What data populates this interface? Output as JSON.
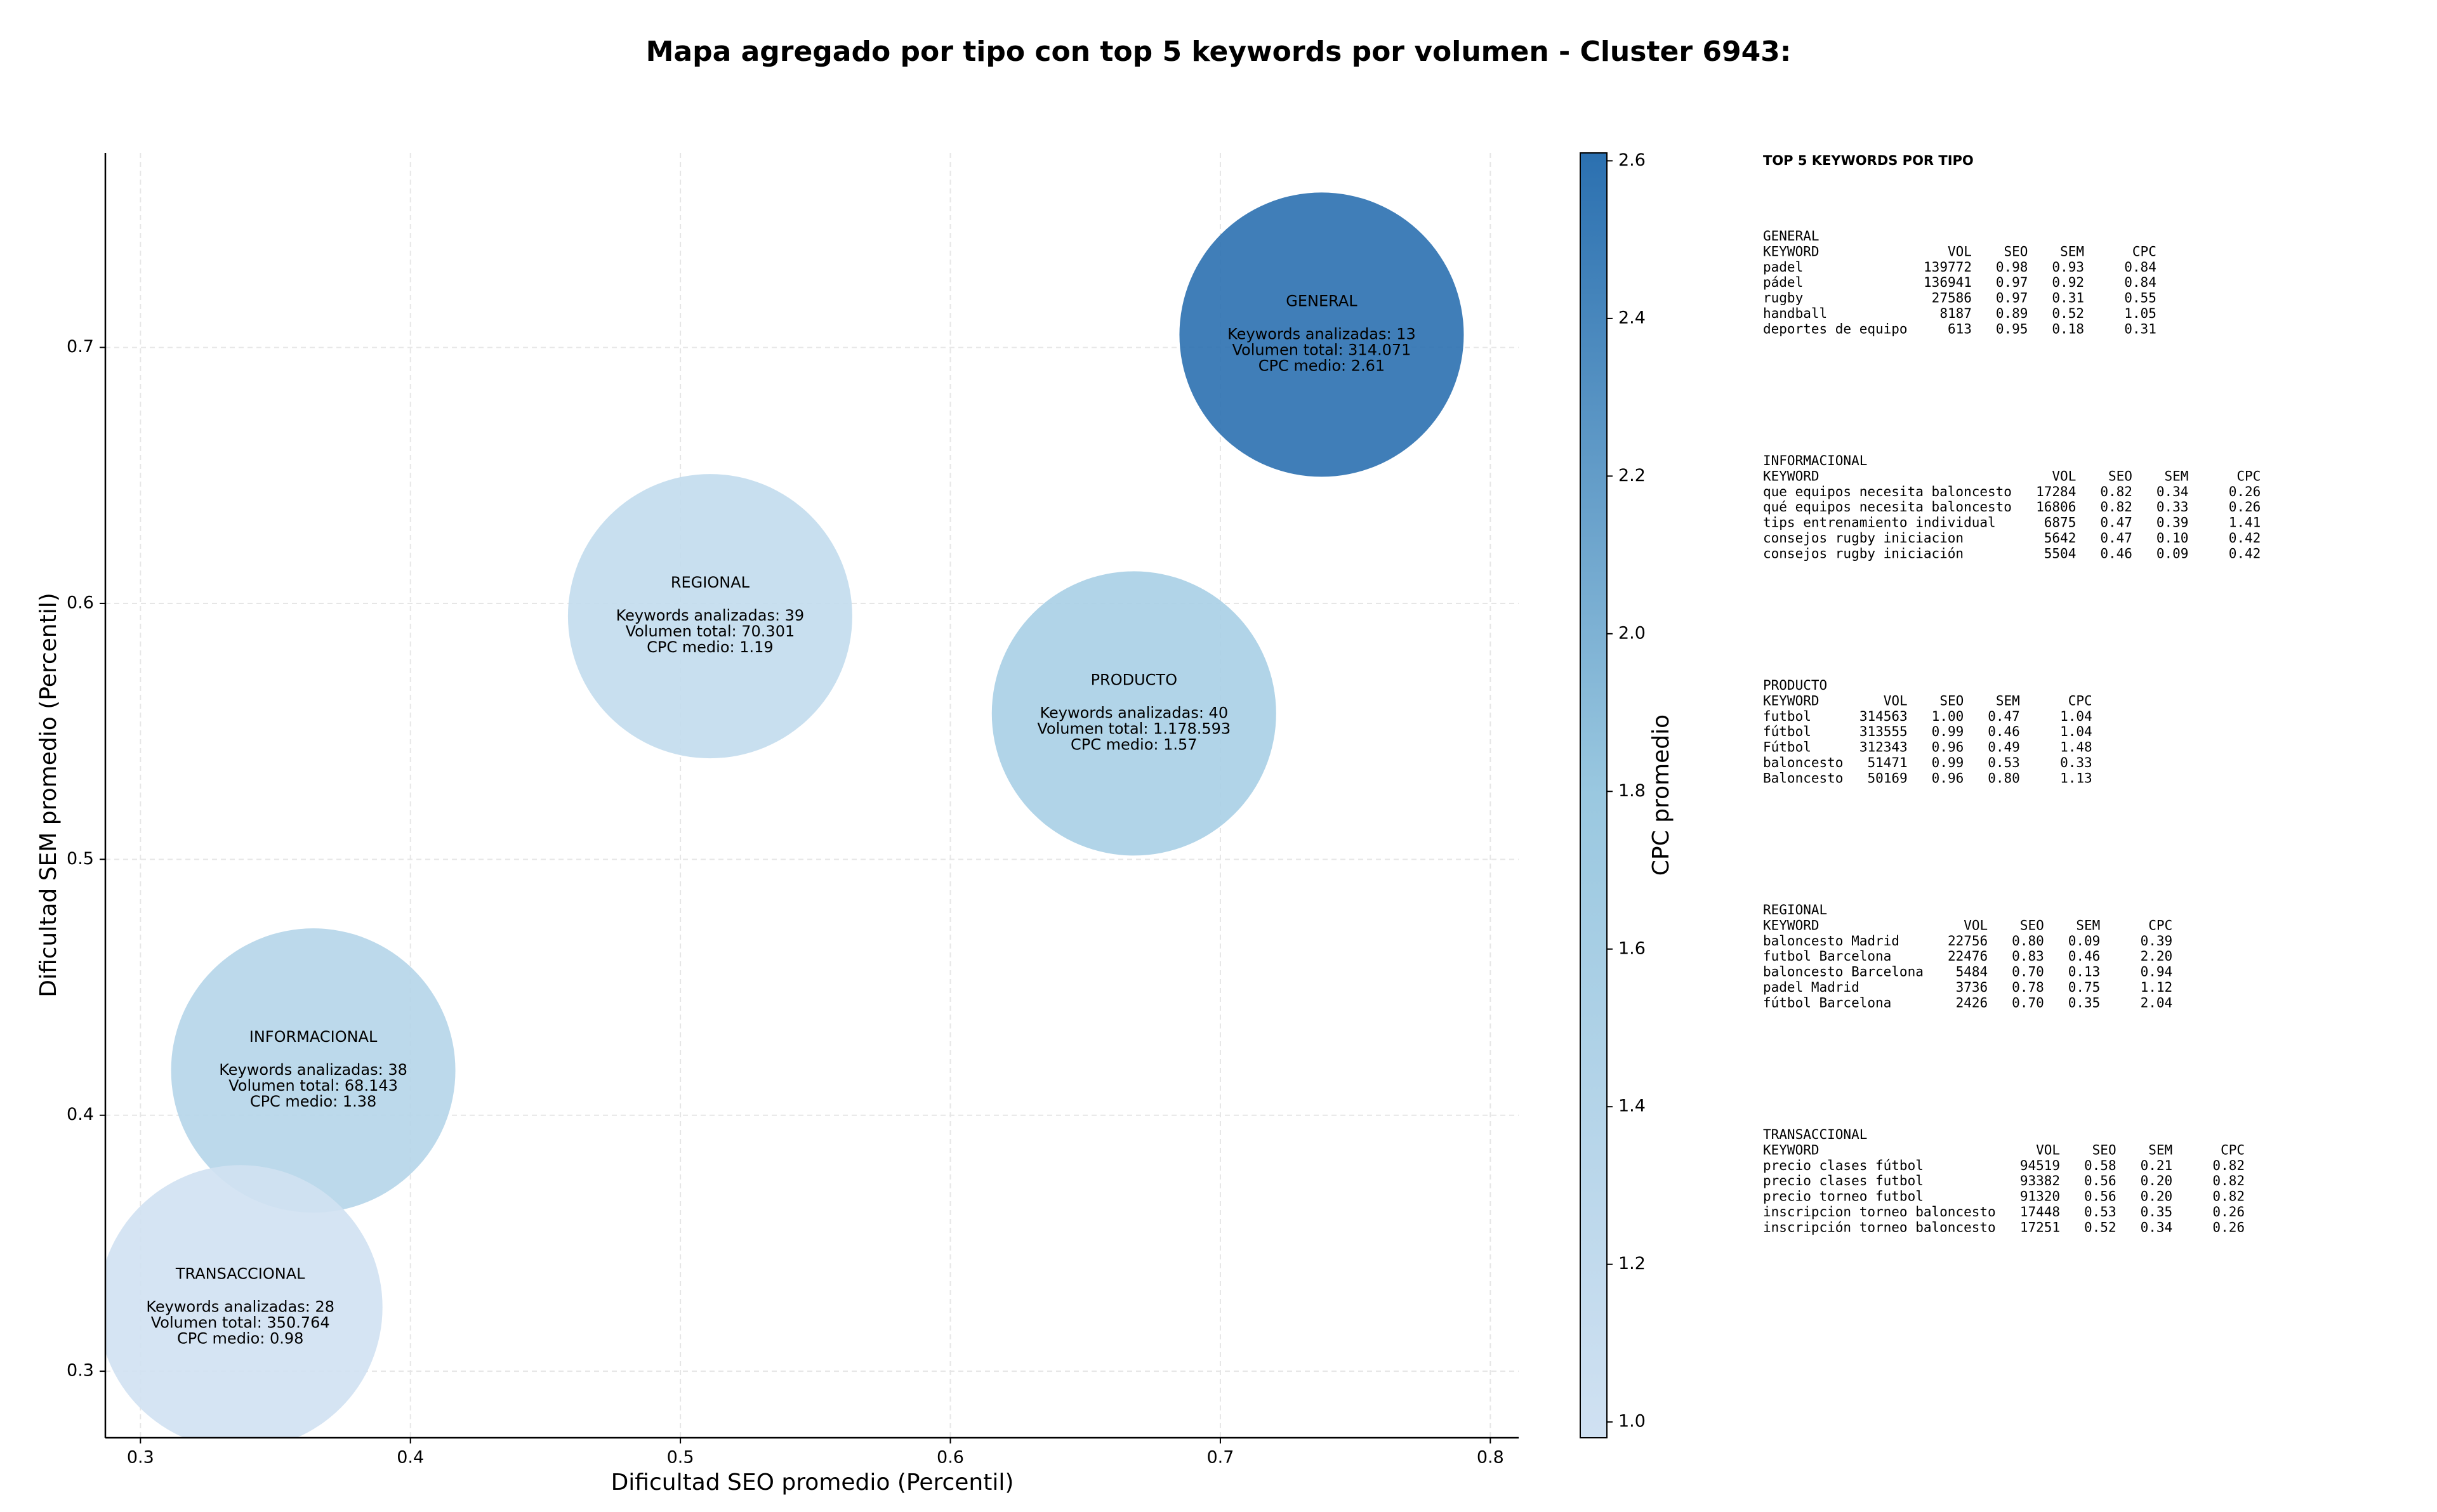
{
  "chart_data": {
    "type": "bubble",
    "title": "Mapa agregado por tipo con top 5 keywords por volumen - Cluster 6943:",
    "x_label": "Dificultad SEO promedio (Percentil)",
    "y_label": "Dificultad SEM promedio (Percentil)",
    "colorbar_label": "CPC promedio",
    "xlim": [
      0.287,
      0.8105
    ],
    "ylim": [
      0.274,
      0.776
    ],
    "xticks": [
      0.3,
      0.4,
      0.5,
      0.6,
      0.7,
      0.8
    ],
    "yticks": [
      0.3,
      0.4,
      0.5,
      0.6,
      0.7
    ],
    "clim": [
      0.98,
      2.61
    ],
    "cticks": [
      {
        "value": 1,
        "label": "1.0"
      },
      1.2,
      1.4,
      1.6,
      1.8,
      {
        "value": 2,
        "label": "2.0"
      },
      2.2,
      2.4,
      2.6
    ],
    "colormap": [
      "#d0e1f2",
      "#9ac8e0",
      "#2b70b0"
    ],
    "grid": true,
    "points": [
      {
        "name": "GENERAL",
        "x": 0.7375,
        "y": 0.705,
        "cpc": 2.61,
        "text": [
          "Keywords analizadas: 13",
          "Volumen total: 314.071",
          "CPC medio: 2.61"
        ]
      },
      {
        "name": "REGIONAL",
        "x": 0.511,
        "y": 0.595,
        "cpc": 1.19,
        "text": [
          "Keywords analizadas: 39",
          "Volumen total: 70.301",
          "CPC medio: 1.19"
        ]
      },
      {
        "name": "PRODUCTO",
        "x": 0.668,
        "y": 0.557,
        "cpc": 1.57,
        "text": [
          "Keywords analizadas: 40",
          "Volumen total: 1.178.593",
          "CPC medio: 1.57"
        ]
      },
      {
        "name": "INFORMACIONAL",
        "x": 0.364,
        "y": 0.4175,
        "cpc": 1.38,
        "text": [
          "Keywords analizadas: 38",
          "Volumen total: 68.143",
          "CPC medio: 1.38"
        ]
      },
      {
        "name": "TRANSACCIONAL",
        "x": 0.337,
        "y": 0.325,
        "cpc": 0.98,
        "text": [
          "Keywords analizadas: 28",
          "Volumen total: 350.764",
          "CPC medio: 0.98"
        ]
      }
    ]
  },
  "keyword_panel": {
    "title": "TOP 5 KEYWORDS POR TIPO",
    "header": [
      "KEYWORD",
      "VOL",
      "SEO",
      "SEM",
      "CPC"
    ],
    "sections": [
      {
        "name": "GENERAL",
        "rows": [
          [
            "padel",
            "139772",
            "0.98",
            "0.93",
            "0.84"
          ],
          [
            "pádel",
            "136941",
            "0.97",
            "0.92",
            "0.84"
          ],
          [
            "rugby",
            "27586",
            "0.97",
            "0.31",
            "0.55"
          ],
          [
            "handball",
            "8187",
            "0.89",
            "0.52",
            "1.05"
          ],
          [
            "deportes de equipo",
            "613",
            "0.95",
            "0.18",
            "0.31"
          ]
        ]
      },
      {
        "name": "INFORMACIONAL",
        "rows": [
          [
            "que equipos necesita baloncesto",
            "17284",
            "0.82",
            "0.34",
            "0.26"
          ],
          [
            "qué equipos necesita baloncesto",
            "16806",
            "0.82",
            "0.33",
            "0.26"
          ],
          [
            "tips entrenamiento individual",
            "6875",
            "0.47",
            "0.39",
            "1.41"
          ],
          [
            "consejos rugby iniciacion",
            "5642",
            "0.47",
            "0.10",
            "0.42"
          ],
          [
            "consejos rugby iniciación",
            "5504",
            "0.46",
            "0.09",
            "0.42"
          ]
        ]
      },
      {
        "name": "PRODUCTO",
        "rows": [
          [
            "futbol",
            "314563",
            "1.00",
            "0.47",
            "1.04"
          ],
          [
            "fútbol",
            "313555",
            "0.99",
            "0.46",
            "1.04"
          ],
          [
            "Fútbol",
            "312343",
            "0.96",
            "0.49",
            "1.48"
          ],
          [
            "baloncesto",
            "51471",
            "0.99",
            "0.53",
            "0.33"
          ],
          [
            "Baloncesto",
            "50169",
            "0.96",
            "0.80",
            "1.13"
          ]
        ]
      },
      {
        "name": "REGIONAL",
        "rows": [
          [
            "baloncesto Madrid",
            "22756",
            "0.80",
            "0.09",
            "0.39"
          ],
          [
            "futbol Barcelona",
            "22476",
            "0.83",
            "0.46",
            "2.20"
          ],
          [
            "baloncesto Barcelona",
            "5484",
            "0.70",
            "0.13",
            "0.94"
          ],
          [
            "padel Madrid",
            "3736",
            "0.78",
            "0.75",
            "1.12"
          ],
          [
            "fútbol Barcelona",
            "2426",
            "0.70",
            "0.35",
            "2.04"
          ]
        ]
      },
      {
        "name": "TRANSACCIONAL",
        "rows": [
          [
            "precio clases fútbol",
            "94519",
            "0.58",
            "0.21",
            "0.82"
          ],
          [
            "precio clases futbol",
            "93382",
            "0.56",
            "0.20",
            "0.82"
          ],
          [
            "precio torneo futbol",
            "91320",
            "0.56",
            "0.20",
            "0.82"
          ],
          [
            "inscripcion torneo baloncesto",
            "17448",
            "0.53",
            "0.35",
            "0.26"
          ],
          [
            "inscripción torneo baloncesto",
            "17251",
            "0.52",
            "0.34",
            "0.26"
          ]
        ]
      }
    ]
  }
}
